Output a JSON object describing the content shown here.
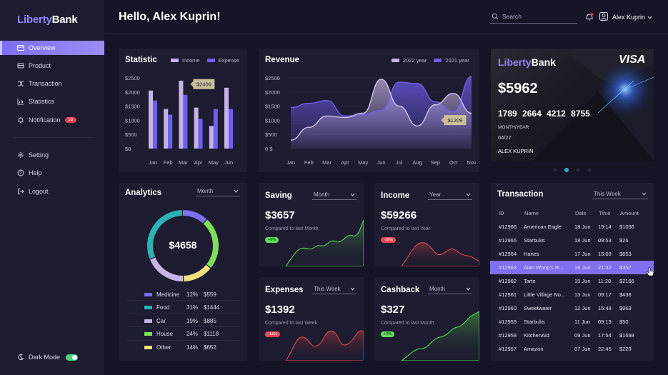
{
  "app": {
    "logo_part1": "Liberty",
    "logo_part2": "Bank",
    "greeting": "Hello, Alex Kuprin!"
  },
  "sidebar": {
    "items": [
      {
        "label": "Overview",
        "icon": "grid-icon"
      },
      {
        "label": "Product",
        "icon": "box-icon"
      },
      {
        "label": "Transaction",
        "icon": "shuffle-icon"
      },
      {
        "label": "Statistics",
        "icon": "bar-chart-icon"
      },
      {
        "label": "Notification",
        "icon": "bell-icon",
        "badge": "16"
      },
      {
        "label": "Setting",
        "icon": "gear-icon"
      },
      {
        "label": "Help",
        "icon": "help-icon"
      },
      {
        "label": "Logout",
        "icon": "logout-icon"
      }
    ],
    "dark_mode_label": "Dark Mode"
  },
  "header": {
    "search_placeholder": "Search",
    "user_name": "Alex Kuprin"
  },
  "statistic": {
    "title": "Statistic",
    "legend_income": "Income",
    "legend_expense": "Expense",
    "tooltip": "$2406"
  },
  "revenue": {
    "title": "Revenue",
    "legend_2022": "2022 year",
    "legend_2021": "2021 year",
    "tooltip": "$1209"
  },
  "bank_card": {
    "logo_part1": "Liberty",
    "logo_part2": "Bank",
    "network": "VISA",
    "balance": "$5962",
    "number_groups": [
      "1789",
      "2664",
      "4212",
      "8755"
    ],
    "expiry_label": "MONTH/YEAR",
    "expiry": "04/27",
    "holder": "ALEX KUPRIN"
  },
  "analytics": {
    "title": "Analytics",
    "period": "Month",
    "total": "$4658",
    "items": [
      {
        "name": "Medicine",
        "pct": "12%",
        "amount": "$559",
        "color": "#7c6ff0"
      },
      {
        "name": "Food",
        "pct": "31%",
        "amount": "$1444",
        "color": "#2bb3b7"
      },
      {
        "name": "Car",
        "pct": "19%",
        "amount": "$885",
        "color": "#c7b4e6"
      },
      {
        "name": "House",
        "pct": "24%",
        "amount": "$1118",
        "color": "#7ee05a"
      },
      {
        "name": "Other",
        "pct": "14%",
        "amount": "$652",
        "color": "#f1e07c"
      }
    ]
  },
  "saving": {
    "title": "Saving",
    "period": "Month",
    "value": "$3657",
    "compare": "Compared to last Month",
    "change": "+6%"
  },
  "income": {
    "title": "Income",
    "period": "Year",
    "value": "$59266",
    "compare": "Compared to last Year",
    "change": "-16%"
  },
  "expenses": {
    "title": "Expenses",
    "period": "This Week",
    "value": "$1392",
    "compare": "Compared to last Week",
    "change": "-13%"
  },
  "cashback": {
    "title": "Cashback",
    "period": "Month",
    "value": "$327",
    "compare": "Compared to last Month",
    "change": "+2%"
  },
  "transactions": {
    "title": "Transaction",
    "period": "This Week",
    "columns": [
      "ID",
      "Name",
      "Date",
      "Time",
      "Amount"
    ],
    "rows": [
      [
        "#12966",
        "American Eagle",
        "18 Jun",
        "19:14",
        "$1036"
      ],
      [
        "#12965",
        "Starbuks",
        "18 Jun",
        "09:53",
        "$26"
      ],
      [
        "#12964",
        "Hanes",
        "17 Jun",
        "15:08",
        "$653"
      ],
      [
        "#12963",
        "Alan  Wong's R...",
        "16 Jun",
        "21:32",
        "$357"
      ],
      [
        "#12962",
        "Tarte",
        "15 Jun",
        "11:28",
        "$2166"
      ],
      [
        "#12961",
        "Little Village No...",
        "13 Jun",
        "09:17",
        "$438"
      ],
      [
        "#12960",
        "Sweetwater",
        "12 Jun",
        "15:48",
        "$963"
      ],
      [
        "#12959",
        "Starbuks",
        "11 Jun",
        "09:19",
        "$50"
      ],
      [
        "#12958",
        "KitchenAid",
        "09 Jun",
        "17:54",
        "$1698"
      ],
      [
        "#12957",
        "Amazon",
        "07 Jun",
        "22:45",
        "$229"
      ]
    ],
    "selected_index": 3
  },
  "colors": {
    "accent": "#7b6ff0",
    "income_bar": "#c5b3e6",
    "expense_bar": "#6f5ff0",
    "green": "#5de05c",
    "red": "#e84956"
  },
  "chart_data": [
    {
      "type": "bar",
      "title": "Statistic",
      "categories": [
        "Jan",
        "Feb",
        "Mar",
        "Apr",
        "May",
        "Jun"
      ],
      "series": [
        {
          "name": "Income",
          "values": [
            2050,
            1400,
            2400,
            1450,
            800,
            2150
          ]
        },
        {
          "name": "Expense",
          "values": [
            1700,
            1200,
            1900,
            1050,
            1400,
            1400
          ]
        }
      ],
      "yticks": [
        "$2500",
        "$2000",
        "$1500",
        "$1000",
        "$500",
        "$0"
      ],
      "ylim": [
        0,
        2500
      ]
    },
    {
      "type": "area",
      "title": "Revenue",
      "categories": [
        "Jan",
        "Feb",
        "Mar",
        "Apr",
        "May",
        "Jun",
        "Jul",
        "Aug",
        "Sep",
        "Oct",
        "Nov"
      ],
      "series": [
        {
          "name": "2022 year",
          "values": [
            300,
            750,
            1150,
            1100,
            1250,
            2450,
            1500,
            800,
            1550,
            1950,
            1250
          ]
        },
        {
          "name": "2021 year",
          "values": [
            1450,
            1600,
            1700,
            1150,
            1200,
            1350,
            2350,
            2300,
            1650,
            1300,
            2550
          ]
        }
      ],
      "yticks": [
        "$2500",
        "$2000",
        "$1500",
        "$1000",
        "$500",
        "0 $"
      ],
      "ylim": [
        0,
        2500
      ]
    },
    {
      "type": "pie",
      "title": "Analytics",
      "categories": [
        "Medicine",
        "Food",
        "Car",
        "House",
        "Other"
      ],
      "values": [
        12,
        31,
        19,
        24,
        14
      ]
    }
  ]
}
